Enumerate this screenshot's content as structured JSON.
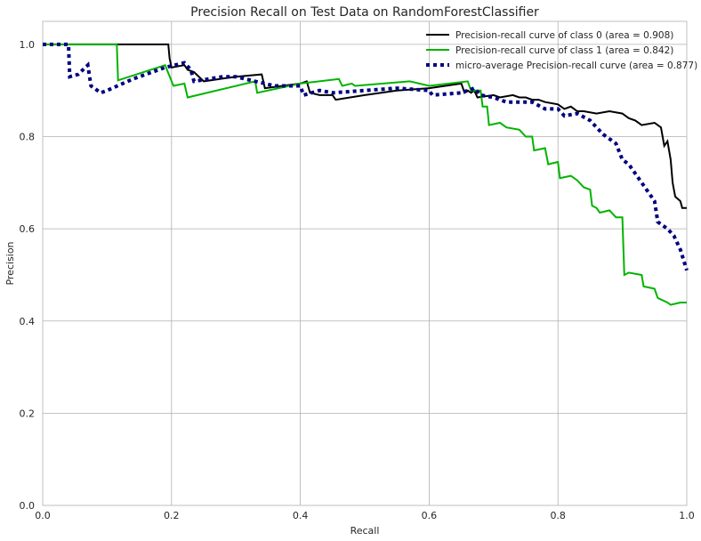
{
  "chart_data": {
    "type": "line",
    "title": "Precision Recall on Test Data on RandomForestClassifier",
    "xlabel": "Recall",
    "ylabel": "Precision",
    "xlim": [
      0.0,
      1.0
    ],
    "ylim": [
      0.0,
      1.05
    ],
    "xticks": [
      0.0,
      0.2,
      0.4,
      0.6,
      0.8,
      1.0
    ],
    "yticks": [
      0.0,
      0.2,
      0.4,
      0.6,
      0.8,
      1.0
    ],
    "xtick_labels": [
      "0.0",
      "0.2",
      "0.4",
      "0.6",
      "0.8",
      "1.0"
    ],
    "ytick_labels": [
      "0.0",
      "0.2",
      "0.4",
      "0.6",
      "0.8",
      "1.0"
    ],
    "grid": true,
    "legend_position": "top-right",
    "series": [
      {
        "name": "Precision-recall curve of class 0 (area = 0.908)",
        "color": "#000000",
        "style": "solid",
        "points": [
          [
            0.0,
            1.0
          ],
          [
            0.195,
            1.0
          ],
          [
            0.197,
            0.97
          ],
          [
            0.2,
            0.95
          ],
          [
            0.22,
            0.955
          ],
          [
            0.225,
            0.945
          ],
          [
            0.235,
            0.94
          ],
          [
            0.25,
            0.92
          ],
          [
            0.3,
            0.93
          ],
          [
            0.34,
            0.935
          ],
          [
            0.345,
            0.905
          ],
          [
            0.4,
            0.915
          ],
          [
            0.41,
            0.92
          ],
          [
            0.415,
            0.895
          ],
          [
            0.43,
            0.89
          ],
          [
            0.45,
            0.89
          ],
          [
            0.455,
            0.88
          ],
          [
            0.5,
            0.89
          ],
          [
            0.55,
            0.9
          ],
          [
            0.6,
            0.905
          ],
          [
            0.65,
            0.915
          ],
          [
            0.655,
            0.895
          ],
          [
            0.66,
            0.9
          ],
          [
            0.665,
            0.895
          ],
          [
            0.67,
            0.9
          ],
          [
            0.675,
            0.885
          ],
          [
            0.7,
            0.89
          ],
          [
            0.71,
            0.885
          ],
          [
            0.73,
            0.89
          ],
          [
            0.74,
            0.885
          ],
          [
            0.75,
            0.885
          ],
          [
            0.76,
            0.88
          ],
          [
            0.77,
            0.88
          ],
          [
            0.78,
            0.875
          ],
          [
            0.8,
            0.87
          ],
          [
            0.81,
            0.86
          ],
          [
            0.82,
            0.865
          ],
          [
            0.83,
            0.855
          ],
          [
            0.84,
            0.855
          ],
          [
            0.86,
            0.85
          ],
          [
            0.88,
            0.855
          ],
          [
            0.9,
            0.85
          ],
          [
            0.91,
            0.84
          ],
          [
            0.92,
            0.835
          ],
          [
            0.93,
            0.825
          ],
          [
            0.95,
            0.83
          ],
          [
            0.96,
            0.82
          ],
          [
            0.965,
            0.78
          ],
          [
            0.97,
            0.79
          ],
          [
            0.975,
            0.75
          ],
          [
            0.978,
            0.7
          ],
          [
            0.982,
            0.67
          ],
          [
            0.99,
            0.66
          ],
          [
            0.993,
            0.645
          ],
          [
            1.0,
            0.645
          ]
        ]
      },
      {
        "name": "Precision-recall curve of class 1 (area = 0.842)",
        "color": "#00b400",
        "style": "solid",
        "points": [
          [
            0.0,
            1.0
          ],
          [
            0.115,
            1.0
          ],
          [
            0.117,
            0.922
          ],
          [
            0.19,
            0.955
          ],
          [
            0.203,
            0.91
          ],
          [
            0.22,
            0.915
          ],
          [
            0.225,
            0.885
          ],
          [
            0.33,
            0.92
          ],
          [
            0.333,
            0.895
          ],
          [
            0.4,
            0.915
          ],
          [
            0.46,
            0.925
          ],
          [
            0.465,
            0.91
          ],
          [
            0.48,
            0.915
          ],
          [
            0.485,
            0.91
          ],
          [
            0.57,
            0.92
          ],
          [
            0.6,
            0.91
          ],
          [
            0.66,
            0.92
          ],
          [
            0.665,
            0.9
          ],
          [
            0.68,
            0.9
          ],
          [
            0.683,
            0.865
          ],
          [
            0.69,
            0.865
          ],
          [
            0.693,
            0.825
          ],
          [
            0.71,
            0.83
          ],
          [
            0.72,
            0.82
          ],
          [
            0.74,
            0.815
          ],
          [
            0.75,
            0.8
          ],
          [
            0.76,
            0.8
          ],
          [
            0.763,
            0.77
          ],
          [
            0.78,
            0.775
          ],
          [
            0.785,
            0.74
          ],
          [
            0.8,
            0.745
          ],
          [
            0.803,
            0.71
          ],
          [
            0.82,
            0.715
          ],
          [
            0.83,
            0.705
          ],
          [
            0.84,
            0.69
          ],
          [
            0.85,
            0.685
          ],
          [
            0.853,
            0.65
          ],
          [
            0.86,
            0.645
          ],
          [
            0.865,
            0.635
          ],
          [
            0.88,
            0.64
          ],
          [
            0.89,
            0.625
          ],
          [
            0.9,
            0.625
          ],
          [
            0.903,
            0.5
          ],
          [
            0.91,
            0.505
          ],
          [
            0.93,
            0.5
          ],
          [
            0.933,
            0.475
          ],
          [
            0.95,
            0.47
          ],
          [
            0.955,
            0.45
          ],
          [
            0.97,
            0.44
          ],
          [
            0.975,
            0.435
          ],
          [
            0.99,
            0.44
          ],
          [
            1.0,
            0.44
          ]
        ]
      },
      {
        "name": "micro-average Precision-recall curve (area = 0.877)",
        "color": "#000080",
        "style": "dotted",
        "points": [
          [
            0.0,
            1.0
          ],
          [
            0.04,
            1.0
          ],
          [
            0.042,
            0.93
          ],
          [
            0.055,
            0.935
          ],
          [
            0.07,
            0.955
          ],
          [
            0.075,
            0.91
          ],
          [
            0.09,
            0.895
          ],
          [
            0.1,
            0.9
          ],
          [
            0.14,
            0.925
          ],
          [
            0.19,
            0.95
          ],
          [
            0.22,
            0.96
          ],
          [
            0.23,
            0.945
          ],
          [
            0.235,
            0.92
          ],
          [
            0.28,
            0.93
          ],
          [
            0.3,
            0.93
          ],
          [
            0.33,
            0.92
          ],
          [
            0.36,
            0.91
          ],
          [
            0.4,
            0.91
          ],
          [
            0.405,
            0.89
          ],
          [
            0.43,
            0.9
          ],
          [
            0.45,
            0.895
          ],
          [
            0.5,
            0.9
          ],
          [
            0.55,
            0.905
          ],
          [
            0.6,
            0.9
          ],
          [
            0.605,
            0.89
          ],
          [
            0.65,
            0.895
          ],
          [
            0.67,
            0.905
          ],
          [
            0.68,
            0.89
          ],
          [
            0.7,
            0.885
          ],
          [
            0.72,
            0.875
          ],
          [
            0.76,
            0.875
          ],
          [
            0.78,
            0.86
          ],
          [
            0.8,
            0.86
          ],
          [
            0.81,
            0.845
          ],
          [
            0.83,
            0.85
          ],
          [
            0.85,
            0.835
          ],
          [
            0.86,
            0.82
          ],
          [
            0.87,
            0.805
          ],
          [
            0.88,
            0.795
          ],
          [
            0.89,
            0.785
          ],
          [
            0.9,
            0.75
          ],
          [
            0.91,
            0.74
          ],
          [
            0.92,
            0.72
          ],
          [
            0.93,
            0.7
          ],
          [
            0.94,
            0.68
          ],
          [
            0.95,
            0.66
          ],
          [
            0.955,
            0.615
          ],
          [
            0.97,
            0.6
          ],
          [
            0.98,
            0.585
          ],
          [
            0.99,
            0.555
          ],
          [
            1.0,
            0.51
          ]
        ]
      }
    ]
  }
}
